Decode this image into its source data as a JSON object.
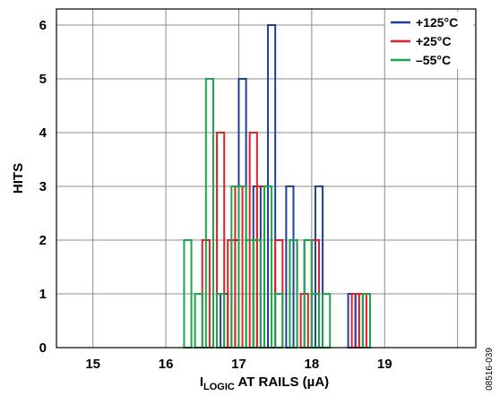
{
  "chart_data": {
    "type": "bar",
    "title": "",
    "xlabel_main": "I",
    "xlabel_sub": "LOGIC",
    "xlabel_rest": " AT RAILS (µA)",
    "ylabel": "HITS",
    "xlim": [
      14.5,
      20.25
    ],
    "ylim": [
      0,
      6.3
    ],
    "x_ticks": [
      "15",
      "16",
      "17",
      "18",
      "19"
    ],
    "y_ticks": [
      "0",
      "1",
      "2",
      "3",
      "4",
      "5",
      "6"
    ],
    "bin_width": 0.1,
    "grid": true,
    "legend_position": "top-right",
    "series": [
      {
        "name": "+125°C",
        "color": "#1f3f99",
        "bins": [
          {
            "x": 16.8,
            "count": 1
          },
          {
            "x": 16.95,
            "count": 2
          },
          {
            "x": 17.05,
            "count": 5
          },
          {
            "x": 17.25,
            "count": 3
          },
          {
            "x": 17.45,
            "count": 6
          },
          {
            "x": 17.7,
            "count": 3
          },
          {
            "x": 17.95,
            "count": 2
          },
          {
            "x": 18.1,
            "count": 3
          },
          {
            "x": 18.55,
            "count": 1
          },
          {
            "x": 18.65,
            "count": 1
          }
        ]
      },
      {
        "name": "+25°C",
        "color": "#e41f26",
        "bins": [
          {
            "x": 16.55,
            "count": 2
          },
          {
            "x": 16.75,
            "count": 4
          },
          {
            "x": 16.9,
            "count": 2
          },
          {
            "x": 17.0,
            "count": 3
          },
          {
            "x": 17.2,
            "count": 4
          },
          {
            "x": 17.3,
            "count": 3
          },
          {
            "x": 17.55,
            "count": 2
          },
          {
            "x": 17.75,
            "count": 2
          },
          {
            "x": 17.9,
            "count": 1
          },
          {
            "x": 18.05,
            "count": 2
          },
          {
            "x": 18.6,
            "count": 1
          },
          {
            "x": 18.7,
            "count": 1
          }
        ]
      },
      {
        "name": "–55°C",
        "color": "#1aa64b",
        "bins": [
          {
            "x": 16.3,
            "count": 2
          },
          {
            "x": 16.45,
            "count": 1
          },
          {
            "x": 16.6,
            "count": 5
          },
          {
            "x": 16.75,
            "count": 1
          },
          {
            "x": 16.95,
            "count": 3
          },
          {
            "x": 17.05,
            "count": 3
          },
          {
            "x": 17.15,
            "count": 2
          },
          {
            "x": 17.25,
            "count": 2
          },
          {
            "x": 17.4,
            "count": 3
          },
          {
            "x": 17.55,
            "count": 1
          },
          {
            "x": 17.75,
            "count": 2
          },
          {
            "x": 17.95,
            "count": 2
          },
          {
            "x": 18.05,
            "count": 1
          },
          {
            "x": 18.2,
            "count": 1
          },
          {
            "x": 18.75,
            "count": 1
          }
        ]
      }
    ]
  },
  "figure_id": "08516-039"
}
